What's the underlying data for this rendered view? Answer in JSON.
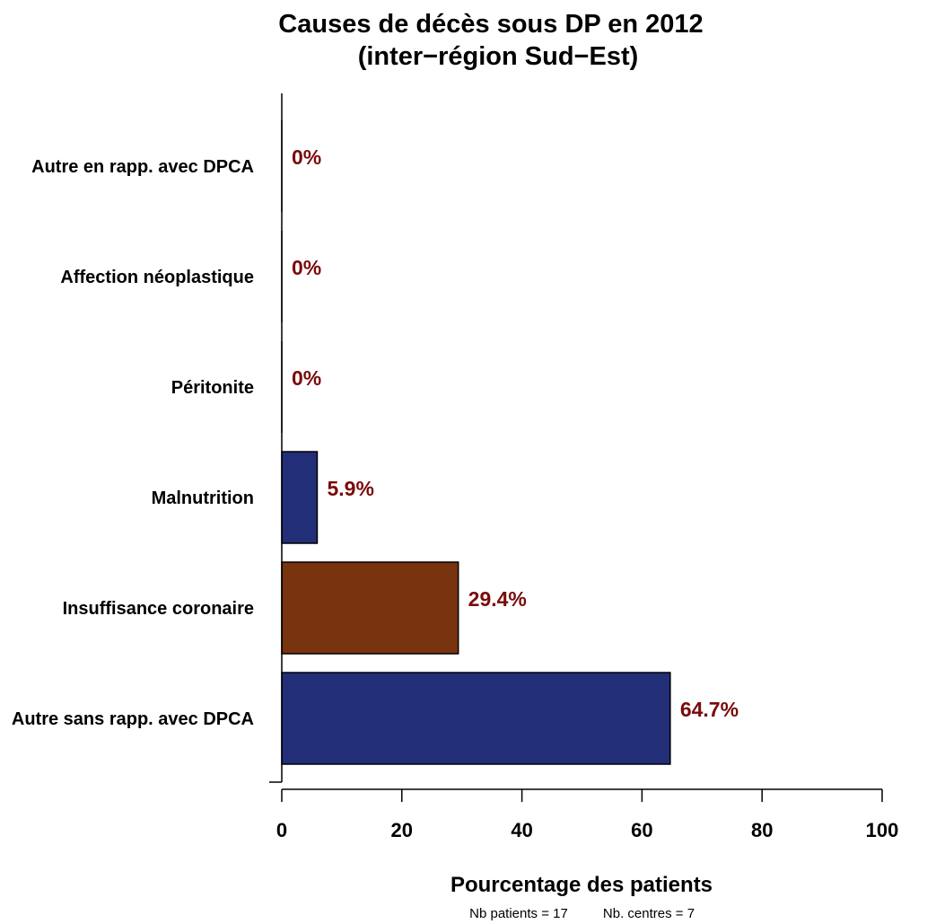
{
  "chart_data": {
    "type": "bar",
    "orientation": "horizontal",
    "title": "Causes de décès sous DP en 2012",
    "subtitle": "(inter−région Sud−Est)",
    "xlabel": "Pourcentage des patients",
    "ylabel": "",
    "xlim": [
      0,
      100
    ],
    "x_ticks": [
      "0",
      "20",
      "40",
      "60",
      "80",
      "100"
    ],
    "categories": [
      "Autre en rapp. avec DPCA",
      "Affection néoplastique",
      "Péritonite",
      "Malnutrition",
      "Insuffisance coronaire",
      "Autre sans rapp. avec DPCA"
    ],
    "values": [
      0,
      0,
      0,
      5.9,
      29.4,
      64.7
    ],
    "value_labels": [
      "0%",
      "0%",
      "0%",
      "5.9%",
      "29.4%",
      "64.7%"
    ],
    "bar_colors": [
      "#222e78",
      "#222e78",
      "#222e78",
      "#222e78",
      "#78330f",
      "#222e78"
    ],
    "label_color": "#7a0a0a",
    "grid": false,
    "legend": "none"
  },
  "footer": {
    "patients": "Nb patients =  17",
    "centres": "Nb. centres =  7"
  }
}
